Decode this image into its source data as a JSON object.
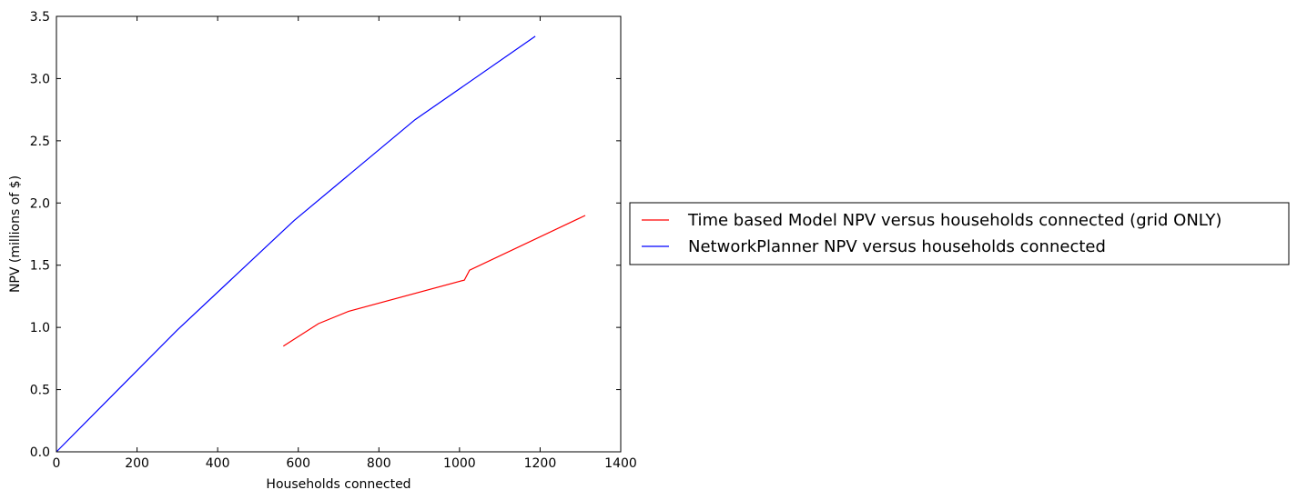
{
  "chart_data": {
    "type": "line",
    "title": "",
    "xlabel": "Households connected",
    "ylabel": "NPV (millions of $)",
    "xlim": [
      0,
      1400
    ],
    "ylim": [
      0,
      3.5
    ],
    "xticks": [
      0,
      200,
      400,
      600,
      800,
      1000,
      1200,
      1400
    ],
    "yticks": [
      0.0,
      0.5,
      1.0,
      1.5,
      2.0,
      2.5,
      3.0,
      3.5
    ],
    "xtick_labels": [
      "0",
      "200",
      "400",
      "600",
      "800",
      "1000",
      "1200",
      "1400"
    ],
    "ytick_labels": [
      "0.0",
      "0.5",
      "1.0",
      "1.5",
      "2.0",
      "2.5",
      "3.0",
      "3.5"
    ],
    "grid": false,
    "legend_position": "right, outside plot area",
    "series": [
      {
        "name": "Time based Model NPV versus households connected (grid ONLY)",
        "color": "#ff0000",
        "points": [
          [
            563,
            0.85
          ],
          [
            650,
            1.03
          ],
          [
            725,
            1.13
          ],
          [
            1012,
            1.38
          ],
          [
            1025,
            1.46
          ],
          [
            1312,
            1.9
          ]
        ]
      },
      {
        "name": "NetworkPlanner NPV versus households connected",
        "color": "#0000ff",
        "points": [
          [
            0,
            0.0
          ],
          [
            300,
            0.98
          ],
          [
            590,
            1.86
          ],
          [
            890,
            2.67
          ],
          [
            1188,
            3.34
          ]
        ]
      }
    ]
  }
}
